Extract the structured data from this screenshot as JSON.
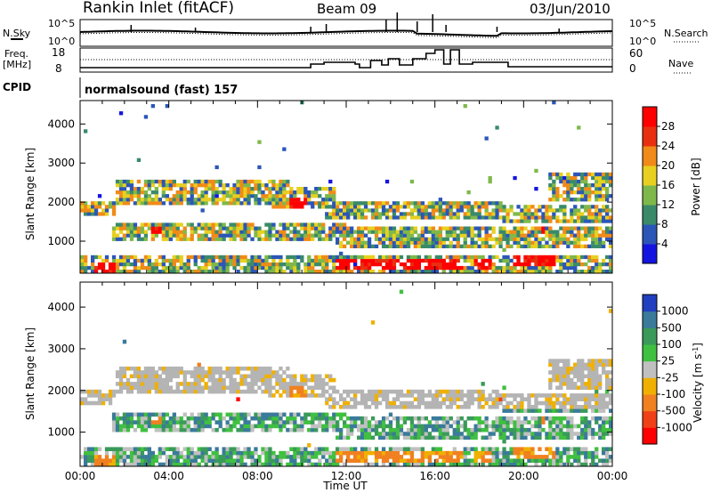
{
  "header": {
    "station": "Rankin Inlet (fitACF)",
    "beam": "Beam 09",
    "date": "03/Jun/2010"
  },
  "strip": {
    "nsky_label": "N.Sky",
    "nsearch_label": "N.Search",
    "noise_ticks_left": [
      "10^5",
      "10^0"
    ],
    "noise_ticks_right": [
      "10^5",
      "10^0"
    ],
    "freq_label": "Freq.",
    "freq_unit": "[MHz]",
    "freq_ticks": [
      "18",
      "8"
    ],
    "nave_label": "Nave",
    "nave_ticks": [
      "60",
      "0"
    ],
    "cpid_label": "CPID",
    "cpid_value": "normalsound (fast) 157"
  },
  "chart_data": [
    {
      "type": "heatmap",
      "panel": "power",
      "ylabel": "Slant Range [km]",
      "xlabel": "",
      "ylim": [
        180,
        4600
      ],
      "yticks": [
        1000,
        2000,
        3000,
        4000
      ],
      "xlim_hours": [
        0,
        24
      ],
      "colorbar": {
        "label": "Power [dB]",
        "ticks": [
          "4",
          "8",
          "12",
          "16",
          "20",
          "24",
          "28"
        ],
        "colors": [
          "#1414e0",
          "#2b56b8",
          "#3a8a6a",
          "#7fb84a",
          "#e8d020",
          "#f08a18",
          "#e83010",
          "#ff0000"
        ]
      }
    },
    {
      "type": "heatmap",
      "panel": "velocity",
      "ylabel": "Slant Range [km]",
      "xlabel": "Time UT",
      "ylim": [
        180,
        4600
      ],
      "yticks": [
        1000,
        2000,
        3000,
        4000
      ],
      "xticks": [
        "00:00",
        "04:00",
        "08:00",
        "12:00",
        "16:00",
        "20:00",
        "00:00"
      ],
      "xlim_hours": [
        0,
        24
      ],
      "colorbar": {
        "label": "Velocity [m s",
        "label_sup": "-1",
        "label_end": "]",
        "ticks": [
          "1000",
          "500",
          "100",
          "25",
          "-25",
          "-100",
          "-500",
          "-1000"
        ],
        "colors": [
          "#2040c0",
          "#3a7a9a",
          "#3a9a5a",
          "#40c040",
          "#c0c0c0",
          "#f0b000",
          "#f08020",
          "#f04018",
          "#ff0000"
        ]
      }
    }
  ],
  "colors": {
    "ground_scatter": "#b4b4b4",
    "frame": "#000000"
  }
}
